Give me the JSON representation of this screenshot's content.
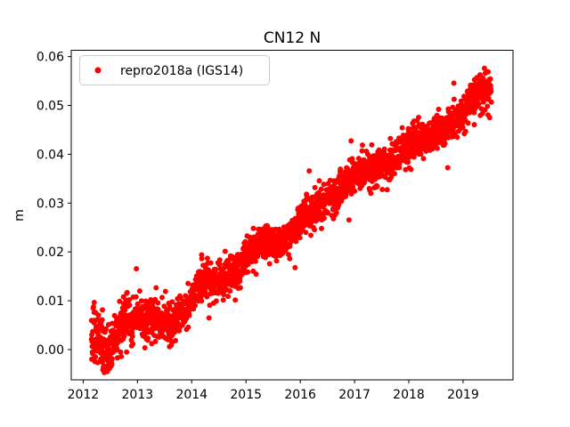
{
  "chart_data": {
    "type": "scatter",
    "title": "CN12 N",
    "xlabel": "",
    "ylabel": "m",
    "xlim": [
      2011.78,
      2019.92
    ],
    "ylim": [
      -0.0062,
      0.0613
    ],
    "xticks": [
      2012,
      2013,
      2014,
      2015,
      2016,
      2017,
      2018,
      2019
    ],
    "xtick_labels": [
      "2012",
      "2013",
      "2014",
      "2015",
      "2016",
      "2017",
      "2018",
      "2019"
    ],
    "yticks": [
      0.0,
      0.01,
      0.02,
      0.03,
      0.04,
      0.05,
      0.06
    ],
    "ytick_labels": [
      "0.00",
      "0.01",
      "0.02",
      "0.03",
      "0.04",
      "0.05",
      "0.06"
    ],
    "grid": false,
    "background": "#ffffff",
    "text_color": "#000000",
    "axes_edge_color": "#000000",
    "legend": {
      "position": "upper left",
      "border_color": "#cccccc",
      "entries": [
        {
          "label": "repro2018a (IGS14)",
          "color": "#ff0000",
          "marker": "point"
        }
      ]
    },
    "series": [
      {
        "name": "repro2018a (IGS14)",
        "color": "#ff0000",
        "marker": "point",
        "marker_radius_px": 3,
        "n_points": 2300,
        "x_start": 2012.15,
        "x_end": 2019.52,
        "value_min": -0.0047,
        "value_max": 0.0582,
        "trend": [
          [
            2012.15,
            0.0035
          ],
          [
            2012.25,
            0.003
          ],
          [
            2012.35,
            0.0012
          ],
          [
            2012.45,
            -0.0002
          ],
          [
            2012.55,
            0.0013
          ],
          [
            2012.68,
            0.0045
          ],
          [
            2012.8,
            0.006
          ],
          [
            2012.95,
            0.0064
          ],
          [
            2013.15,
            0.0068
          ],
          [
            2013.35,
            0.0065
          ],
          [
            2013.5,
            0.0048
          ],
          [
            2013.65,
            0.0055
          ],
          [
            2013.8,
            0.0068
          ],
          [
            2013.95,
            0.0095
          ],
          [
            2014.1,
            0.0128
          ],
          [
            2014.25,
            0.0142
          ],
          [
            2014.4,
            0.0138
          ],
          [
            2014.55,
            0.014
          ],
          [
            2014.7,
            0.015
          ],
          [
            2014.85,
            0.0165
          ],
          [
            2015.0,
            0.019
          ],
          [
            2015.15,
            0.0212
          ],
          [
            2015.3,
            0.0222
          ],
          [
            2015.45,
            0.0215
          ],
          [
            2015.6,
            0.0216
          ],
          [
            2015.75,
            0.0228
          ],
          [
            2015.9,
            0.0248
          ],
          [
            2016.05,
            0.0265
          ],
          [
            2016.2,
            0.0285
          ],
          [
            2016.35,
            0.0298
          ],
          [
            2016.5,
            0.0302
          ],
          [
            2016.65,
            0.0315
          ],
          [
            2016.8,
            0.0332
          ],
          [
            2016.95,
            0.0352
          ],
          [
            2017.1,
            0.0368
          ],
          [
            2017.25,
            0.0366
          ],
          [
            2017.4,
            0.037
          ],
          [
            2017.55,
            0.0378
          ],
          [
            2017.7,
            0.039
          ],
          [
            2017.85,
            0.0403
          ],
          [
            2018.0,
            0.042
          ],
          [
            2018.15,
            0.0436
          ],
          [
            2018.3,
            0.043
          ],
          [
            2018.45,
            0.0435
          ],
          [
            2018.6,
            0.0445
          ],
          [
            2018.75,
            0.0458
          ],
          [
            2018.9,
            0.0472
          ],
          [
            2019.05,
            0.0495
          ],
          [
            2019.2,
            0.0518
          ],
          [
            2019.35,
            0.053
          ],
          [
            2019.52,
            0.0532
          ]
        ],
        "noise_sigma": [
          [
            2012.15,
            0.003
          ],
          [
            2012.6,
            0.0025
          ],
          [
            2013.0,
            0.002
          ],
          [
            2014.0,
            0.0018
          ],
          [
            2016.0,
            0.0018
          ],
          [
            2018.0,
            0.0017
          ],
          [
            2019.52,
            0.0018
          ]
        ],
        "outlier_fraction": 0.05,
        "outlier_scale": 2.1
      }
    ]
  }
}
